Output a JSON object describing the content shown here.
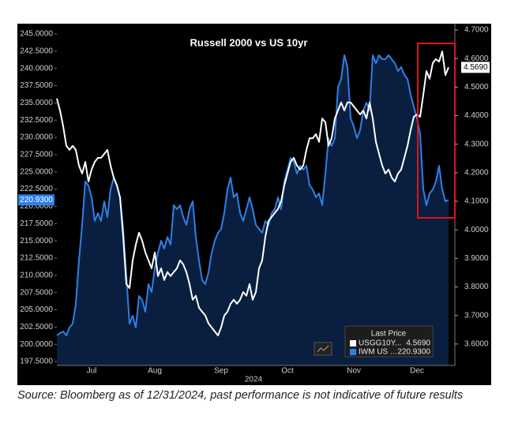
{
  "chart_data": {
    "type": "line",
    "title": "Russell 2000 vs US 10yr",
    "x_label": "2024",
    "source": "Source: Bloomberg as of 12/31/2024, past performance is not indicative of future results",
    "legend": {
      "title": "Last Price"
    },
    "categories": [
      null,
      null,
      null,
      null,
      null,
      null,
      null,
      null,
      null,
      null,
      null,
      "Jul",
      null,
      null,
      null,
      null,
      null,
      null,
      null,
      null,
      null,
      null,
      null,
      null,
      null,
      null,
      null,
      null,
      null,
      null,
      null,
      "Aug",
      null,
      null,
      null,
      null,
      null,
      null,
      null,
      null,
      null,
      null,
      null,
      null,
      null,
      null,
      null,
      null,
      null,
      null,
      null,
      null,
      "Sep",
      null,
      null,
      null,
      null,
      null,
      null,
      null,
      null,
      null,
      null,
      null,
      null,
      null,
      null,
      null,
      null,
      null,
      null,
      null,
      null,
      "Oct",
      null,
      null,
      null,
      null,
      null,
      null,
      null,
      null,
      null,
      null,
      null,
      null,
      null,
      null,
      null,
      null,
      null,
      null,
      null,
      null,
      "Nov",
      null,
      null,
      null,
      null,
      null,
      null,
      null,
      null,
      null,
      null,
      null,
      null,
      null,
      null,
      null,
      null,
      null,
      null,
      null,
      "Dec",
      null,
      null,
      null,
      null,
      null,
      null,
      null,
      null,
      null,
      null
    ],
    "ylim": [
      196.93,
      246.49
    ],
    "yticks": [
      {
        "value": 197.5,
        "label": "197.5000"
      },
      {
        "value": 200,
        "label": "200.0000"
      },
      {
        "value": 202.5,
        "label": "202.5000"
      },
      {
        "value": 205,
        "label": "205.0000"
      },
      {
        "value": 207.5,
        "label": "207.5000"
      },
      {
        "value": 210,
        "label": "210.0000"
      },
      {
        "value": 212.5,
        "label": "212.5000"
      },
      {
        "value": 215,
        "label": "215.0000"
      },
      {
        "value": 217.5,
        "label": "217.5000"
      },
      {
        "value": 220,
        "label": "220.0000"
      },
      {
        "value": 222.5,
        "label": "222.5000"
      },
      {
        "value": 225,
        "label": "225.0000"
      },
      {
        "value": 227.5,
        "label": "227.5000"
      },
      {
        "value": 230,
        "label": "230.0000"
      },
      {
        "value": 232.5,
        "label": "232.5000"
      },
      {
        "value": 235,
        "label": "235.0000"
      },
      {
        "value": 237.5,
        "label": "237.5000"
      },
      {
        "value": 240,
        "label": "240.0000"
      },
      {
        "value": 242.5,
        "label": "242.5000"
      },
      {
        "value": 245,
        "label": "245.0000"
      }
    ],
    "y2lim": [
      3.525,
      4.722
    ],
    "y2ticks": [
      {
        "value": 3.6,
        "label": "3.6000"
      },
      {
        "value": 3.7,
        "label": "3.7000"
      },
      {
        "value": 3.8,
        "label": "3.8000"
      },
      {
        "value": 3.9,
        "label": "3.9000"
      },
      {
        "value": 4.0,
        "label": "4.0000"
      },
      {
        "value": 4.1,
        "label": "4.1000"
      },
      {
        "value": 4.2,
        "label": "4.2000"
      },
      {
        "value": 4.3,
        "label": "4.3000"
      },
      {
        "value": 4.4,
        "label": "4.4000"
      },
      {
        "value": 4.5,
        "label": "4.5000"
      },
      {
        "value": 4.6,
        "label": "4.6000"
      },
      {
        "value": 4.7,
        "label": "4.7000"
      }
    ],
    "series": [
      {
        "name": "USGG10Y...",
        "color": "#ffffff",
        "axis": "y2",
        "last_label": "4.5690",
        "values": [
          4.46,
          4.418,
          4.363,
          4.294,
          4.28,
          4.294,
          4.28,
          4.225,
          4.197,
          4.238,
          4.169,
          4.211,
          4.238,
          4.252,
          4.252,
          4.266,
          4.28,
          4.225,
          4.183,
          4.156,
          4.114,
          3.976,
          3.81,
          3.796,
          3.893,
          3.948,
          3.99,
          3.962,
          3.921,
          3.893,
          3.865,
          3.921,
          3.838,
          3.865,
          3.824,
          3.852,
          3.838,
          3.852,
          3.865,
          3.893,
          3.879,
          3.852,
          3.81,
          3.755,
          3.769,
          3.727,
          3.713,
          3.7,
          3.672,
          3.658,
          3.644,
          3.63,
          3.658,
          3.7,
          3.713,
          3.741,
          3.755,
          3.741,
          3.755,
          3.782,
          3.769,
          3.81,
          3.755,
          3.782,
          3.865,
          3.893,
          3.976,
          4.031,
          4.045,
          4.059,
          4.073,
          4.1,
          4.156,
          4.197,
          4.238,
          4.252,
          4.225,
          4.211,
          4.225,
          4.28,
          4.321,
          4.321,
          4.335,
          4.308,
          4.39,
          4.377,
          4.294,
          4.321,
          4.39,
          4.418,
          4.446,
          4.418,
          4.446,
          4.446,
          4.432,
          4.418,
          4.404,
          4.418,
          4.39,
          4.446,
          4.39,
          4.308,
          4.266,
          4.225,
          4.197,
          4.211,
          4.183,
          4.169,
          4.197,
          4.211,
          4.252,
          4.294,
          4.349,
          4.396,
          4.404,
          4.396,
          4.473,
          4.556,
          4.529,
          4.584,
          4.598,
          4.589,
          4.625,
          4.542,
          4.569
        ]
      },
      {
        "name": "IWM US ...",
        "color": "#2f7fe6",
        "fill": "#0a1f3f",
        "axis": "y",
        "last_label": "220.9300",
        "values": [
          201.28,
          201.62,
          201.85,
          201.28,
          202.42,
          202.99,
          205.85,
          212.15,
          217.3,
          223.6,
          223.02,
          221.31,
          217.87,
          219.02,
          217.87,
          220.73,
          218.45,
          222.45,
          224.17,
          223.02,
          221.31,
          216.73,
          209.86,
          202.99,
          204.14,
          202.42,
          207.0,
          206.43,
          204.71,
          208.72,
          207.57,
          211.01,
          213.29,
          215.01,
          213.87,
          215.58,
          214.44,
          220.16,
          219.59,
          220.16,
          218.45,
          217.3,
          219.59,
          220.73,
          215.58,
          212.15,
          209.29,
          208.72,
          210.43,
          213.29,
          215.01,
          216.16,
          216.73,
          219.02,
          222.45,
          224.17,
          221.31,
          221.88,
          219.02,
          217.87,
          219.59,
          221.31,
          219.59,
          217.3,
          216.73,
          216.16,
          217.87,
          217.3,
          219.02,
          219.59,
          221.31,
          219.59,
          223.6,
          225.31,
          227.03,
          226.46,
          224.74,
          225.89,
          225.31,
          225.89,
          223.02,
          222.45,
          221.31,
          221.88,
          220.16,
          224.74,
          229.89,
          228.75,
          229.89,
          237.33,
          238.48,
          241.91,
          240.19,
          232.75,
          231.61,
          229.89,
          231.04,
          233.9,
          235.04,
          233.9,
          241.91,
          240.76,
          241.91,
          241.34,
          241.34,
          241.91,
          241.34,
          240.76,
          239.62,
          240.19,
          239.05,
          238.48,
          236.19,
          234.47,
          232.75,
          230.46,
          222.45,
          220.16,
          221.88,
          222.45,
          223.6,
          225.89,
          222.45,
          220.73,
          220.93
        ]
      }
    ]
  }
}
